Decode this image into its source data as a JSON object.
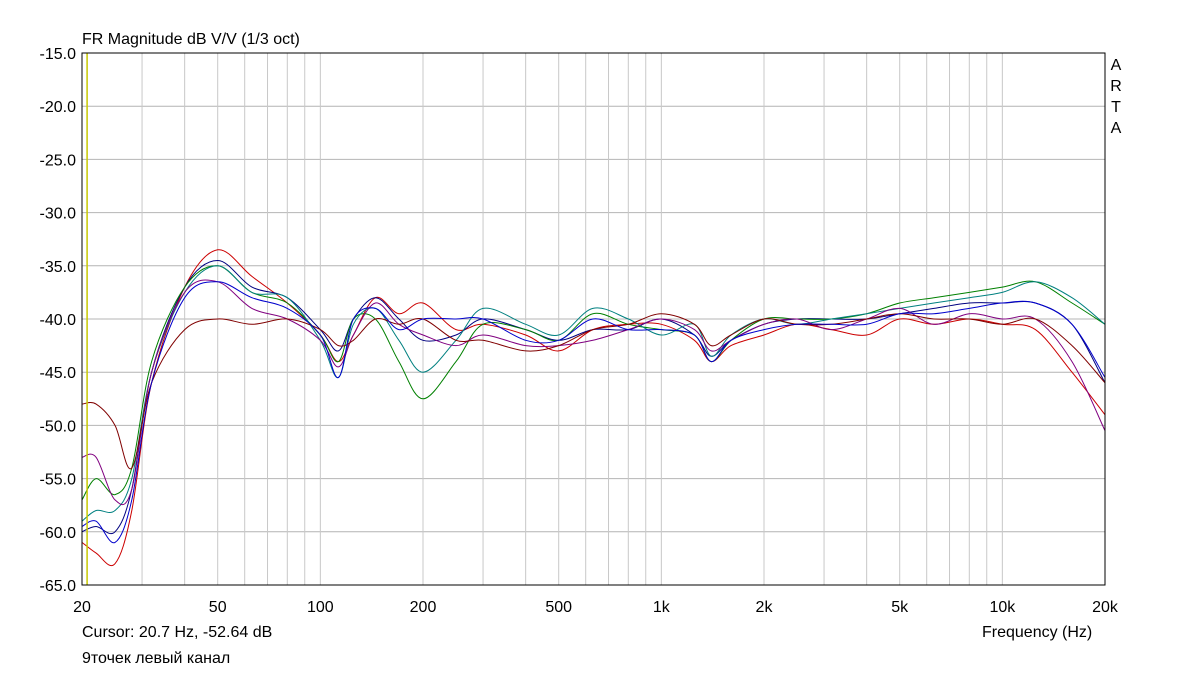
{
  "chart_data": {
    "type": "line",
    "title": "FR Magnitude dB V/V (1/3 oct)",
    "brand": "ARTA",
    "xlabel": "Frequency (Hz)",
    "x_scale": "log",
    "xlim": [
      20,
      20000
    ],
    "ylim": [
      -65,
      -15
    ],
    "grid": true,
    "y_ticks": [
      "-15.0",
      "-20.0",
      "-25.0",
      "-30.0",
      "-35.0",
      "-40.0",
      "-45.0",
      "-50.0",
      "-55.0",
      "-60.0",
      "-65.0"
    ],
    "y_tick_values": [
      -15,
      -20,
      -25,
      -30,
      -35,
      -40,
      -45,
      -50,
      -55,
      -60,
      -65
    ],
    "x_ticks": [
      {
        "label": "20",
        "value": 20
      },
      {
        "label": "50",
        "value": 50
      },
      {
        "label": "100",
        "value": 100
      },
      {
        "label": "200",
        "value": 200
      },
      {
        "label": "500",
        "value": 500
      },
      {
        "label": "1k",
        "value": 1000
      },
      {
        "label": "2k",
        "value": 2000
      },
      {
        "label": "5k",
        "value": 5000
      },
      {
        "label": "10k",
        "value": 10000
      },
      {
        "label": "20k",
        "value": 20000
      }
    ],
    "cursor": {
      "value": 20.7,
      "color": "#c8c800"
    },
    "series": [
      {
        "color": "#cc0000",
        "x": [
          20,
          22,
          25,
          28,
          32,
          40,
          50,
          63,
          80,
          100,
          113,
          125,
          145,
          170,
          200,
          250,
          300,
          400,
          500,
          630,
          800,
          1000,
          1250,
          1400,
          1600,
          2000,
          2500,
          3150,
          4000,
          5000,
          6300,
          8000,
          10000,
          12500,
          16000,
          20000
        ],
        "y": [
          -61,
          -62,
          -63,
          -58,
          -46,
          -37,
          -33.5,
          -36,
          -38.5,
          -41.5,
          -44,
          -41.5,
          -38,
          -39.5,
          -38.5,
          -41,
          -40.5,
          -41.5,
          -43,
          -41,
          -40.5,
          -40.5,
          -42,
          -44,
          -42.5,
          -41.5,
          -40.5,
          -41,
          -41.5,
          -40,
          -40.5,
          -40,
          -40.5,
          -41,
          -45,
          -49
        ]
      },
      {
        "color": "#000080",
        "x": [
          20,
          22,
          25,
          28,
          32,
          40,
          50,
          63,
          80,
          100,
          113,
          125,
          145,
          170,
          200,
          250,
          300,
          400,
          500,
          630,
          800,
          1000,
          1250,
          1400,
          1600,
          2000,
          2500,
          3150,
          4000,
          5000,
          6300,
          8000,
          10000,
          12500,
          16000,
          20000
        ],
        "y": [
          -60,
          -59.5,
          -60,
          -56,
          -45,
          -37,
          -34.5,
          -37,
          -38,
          -41,
          -43,
          -40,
          -38,
          -40,
          -42,
          -41.5,
          -40,
          -41,
          -42,
          -41,
          -41,
          -40,
          -41.5,
          -43.5,
          -42,
          -40.5,
          -40,
          -40,
          -40,
          -39.5,
          -39,
          -38.5,
          -38.5,
          -38.5,
          -40.5,
          -46
        ]
      },
      {
        "color": "#008000",
        "x": [
          20,
          22,
          25,
          28,
          32,
          40,
          50,
          63,
          80,
          100,
          113,
          125,
          145,
          170,
          200,
          250,
          300,
          400,
          500,
          630,
          800,
          1000,
          1250,
          1400,
          1600,
          2000,
          2500,
          3150,
          4000,
          5000,
          6300,
          8000,
          10000,
          12500,
          16000,
          20000
        ],
        "y": [
          -57,
          -55,
          -56.5,
          -54,
          -44,
          -37,
          -35,
          -37.5,
          -38.5,
          -41.5,
          -44,
          -40,
          -40,
          -44,
          -47.5,
          -44,
          -40.5,
          -41,
          -42,
          -39.5,
          -40.5,
          -41,
          -41.5,
          -44,
          -42,
          -40,
          -40,
          -40,
          -39.5,
          -38.5,
          -38,
          -37.5,
          -37,
          -36.5,
          -38.5,
          -40.5
        ]
      },
      {
        "color": "#008080",
        "x": [
          20,
          22,
          25,
          28,
          32,
          40,
          50,
          63,
          80,
          100,
          113,
          125,
          145,
          170,
          200,
          250,
          300,
          400,
          500,
          630,
          800,
          1000,
          1250,
          1400,
          1600,
          2000,
          2500,
          3150,
          4000,
          5000,
          6300,
          8000,
          10000,
          12500,
          16000,
          20000
        ],
        "y": [
          -59,
          -58,
          -58,
          -55,
          -45,
          -37.5,
          -35,
          -37.5,
          -38,
          -42,
          -45.5,
          -40.5,
          -39,
          -42,
          -45,
          -42,
          -39,
          -40.5,
          -41.5,
          -39,
          -40,
          -41.5,
          -40.5,
          -43.5,
          -41.5,
          -40,
          -40.5,
          -40,
          -39.5,
          -39,
          -38.5,
          -38,
          -37.5,
          -36.5,
          -38,
          -40.5
        ]
      },
      {
        "color": "#800080",
        "x": [
          20,
          22,
          25,
          28,
          32,
          40,
          50,
          63,
          80,
          100,
          113,
          125,
          145,
          170,
          200,
          250,
          300,
          400,
          500,
          630,
          800,
          1000,
          1250,
          1400,
          1600,
          2000,
          2500,
          3150,
          4000,
          5000,
          6300,
          8000,
          10000,
          12500,
          16000,
          20000
        ],
        "y": [
          -53,
          -53,
          -57,
          -56,
          -45,
          -37.5,
          -36.5,
          -39,
          -40,
          -42,
          -44.5,
          -41.5,
          -38.5,
          -40.5,
          -41.5,
          -42.5,
          -41.5,
          -42.5,
          -42.5,
          -42,
          -41,
          -40,
          -41,
          -43,
          -42,
          -40.5,
          -40,
          -41,
          -40,
          -39,
          -40.5,
          -39.5,
          -40,
          -40,
          -44,
          -50.5
        ]
      },
      {
        "color": "#800000",
        "x": [
          20,
          22,
          25,
          28,
          32,
          40,
          50,
          63,
          80,
          100,
          113,
          125,
          145,
          170,
          200,
          250,
          300,
          400,
          500,
          630,
          800,
          1000,
          1250,
          1400,
          1600,
          2000,
          2500,
          3150,
          4000,
          5000,
          6300,
          8000,
          10000,
          12500,
          16000,
          20000
        ],
        "y": [
          -48,
          -48,
          -50,
          -54,
          -46,
          -41,
          -40,
          -40.5,
          -40,
          -41,
          -42.5,
          -42,
          -40,
          -40.5,
          -40,
          -42,
          -42,
          -43,
          -42.5,
          -41,
          -40.5,
          -39.5,
          -40.5,
          -42.5,
          -41.5,
          -40,
          -40.5,
          -40.5,
          -40,
          -39.5,
          -40,
          -40,
          -40.5,
          -40,
          -42.5,
          -46
        ]
      },
      {
        "color": "#0000cc",
        "x": [
          20,
          22,
          25,
          28,
          32,
          40,
          50,
          63,
          80,
          100,
          113,
          125,
          145,
          170,
          200,
          250,
          300,
          400,
          500,
          630,
          800,
          1000,
          1250,
          1400,
          1600,
          2000,
          2500,
          3150,
          4000,
          5000,
          6300,
          8000,
          10000,
          12500,
          16000,
          20000
        ],
        "y": [
          -59.5,
          -59,
          -61,
          -57,
          -46,
          -38,
          -36.5,
          -38,
          -39,
          -41.5,
          -45.5,
          -40,
          -39,
          -41,
          -40,
          -40,
          -40,
          -42,
          -42,
          -40,
          -41,
          -41,
          -41.5,
          -44,
          -42,
          -41,
          -40.5,
          -40.5,
          -40.5,
          -39.5,
          -39.5,
          -39,
          -38.5,
          -38.5,
          -40.5,
          -45.5
        ]
      }
    ]
  },
  "status": {
    "cursor_text": "Cursor: 20.7 Hz, -52.64 dB",
    "frequency_label": "Frequency (Hz)",
    "caption": "9точек левый канал"
  }
}
